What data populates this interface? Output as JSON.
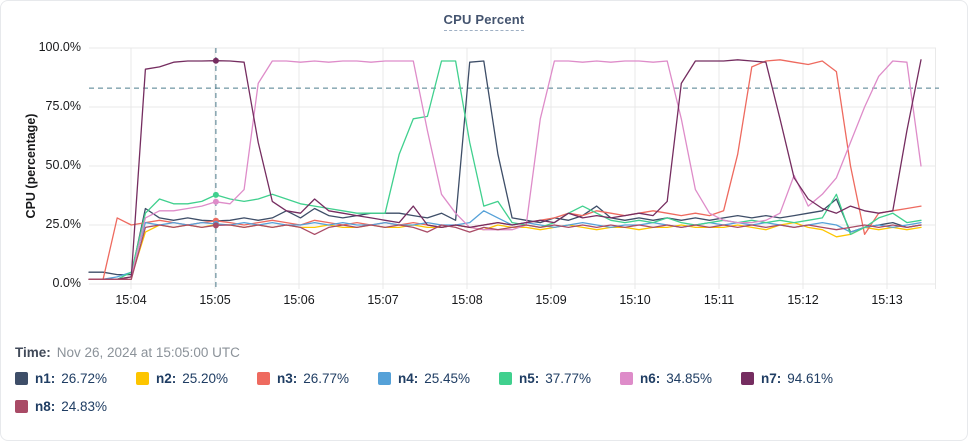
{
  "title": "CPU Percent",
  "time": {
    "label": "Time:",
    "value": "Nov 26, 2024 at 15:05:00 UTC"
  },
  "chart_data": {
    "type": "line",
    "title": "CPU Percent",
    "ylabel": "CPU (percentage)",
    "ylim": [
      0,
      100
    ],
    "grid": true,
    "legend_position": "bottom",
    "y_tick_labels": [
      "100.0%",
      "75.0%",
      "50.0%",
      "25.0%",
      "0.0%"
    ],
    "x_tick_labels": [
      "15:04",
      "15:05",
      "15:06",
      "15:07",
      "15:08",
      "15:09",
      "15:10",
      "15:11",
      "15:12",
      "15:13"
    ],
    "x_start_time": "15:03:30",
    "x_interval_seconds": 10,
    "threshold_percent": 83,
    "crosshair_time": "15:05:00",
    "crosshair_index": 9,
    "series": [
      {
        "name": "n1",
        "legend_label": "n1:",
        "legend_value": "26.72%",
        "color": "#3e4e68",
        "values": [
          5,
          5,
          4,
          4,
          32,
          28,
          27,
          28,
          27,
          26.72,
          27,
          28,
          27,
          28,
          31,
          28,
          32,
          29,
          28,
          29,
          30,
          30,
          30,
          29,
          28,
          30,
          27,
          94,
          94.5,
          55,
          28,
          27,
          26,
          28,
          27,
          29,
          33,
          28,
          27,
          28,
          27,
          28,
          27,
          28,
          27,
          28,
          29,
          28,
          29,
          28,
          29,
          30,
          31,
          36,
          22,
          24,
          25,
          26,
          24,
          25
        ]
      },
      {
        "name": "n2",
        "legend_label": "n2:",
        "legend_value": "25.20%",
        "color": "#fdc500",
        "values": [
          2,
          2,
          2,
          3,
          22,
          25,
          24,
          25,
          24,
          25.2,
          25,
          24,
          25,
          24,
          25,
          24,
          24,
          25,
          24,
          24,
          25,
          24,
          24,
          25,
          24,
          24,
          25,
          24,
          23,
          25,
          24,
          24,
          23,
          24,
          25,
          24,
          23,
          24,
          24,
          23,
          24,
          24,
          25,
          24,
          24,
          24,
          25,
          24,
          23,
          25,
          26,
          24,
          23,
          20,
          21,
          24,
          23,
          24,
          23,
          24
        ]
      },
      {
        "name": "n3",
        "legend_label": "n3:",
        "legend_value": "26.77%",
        "color": "#ee6a5f",
        "values": [
          2,
          2,
          28,
          25,
          26,
          27,
          26,
          25,
          26,
          26.77,
          26,
          25,
          26,
          27,
          26,
          25,
          27,
          26,
          25,
          26,
          25,
          26,
          25,
          26,
          25,
          24,
          25,
          24,
          25,
          26,
          25,
          26,
          27,
          28,
          30,
          29,
          31,
          30,
          29,
          30,
          31,
          30,
          29,
          30,
          29,
          31,
          55,
          92,
          94.5,
          95,
          94,
          93,
          94.5,
          90,
          50,
          21,
          30,
          31,
          32,
          33
        ]
      },
      {
        "name": "n4",
        "legend_label": "n4:",
        "legend_value": "25.45%",
        "color": "#55a1d8",
        "values": [
          2,
          2,
          3,
          5,
          26,
          25,
          26,
          25,
          26,
          25.45,
          25,
          26,
          25,
          26,
          25,
          25,
          26,
          25,
          26,
          25,
          25,
          26,
          25,
          25,
          26,
          25,
          25,
          26,
          31,
          28,
          25,
          26,
          25,
          24,
          25,
          26,
          25,
          24,
          25,
          25,
          26,
          25,
          24,
          25,
          26,
          25,
          26,
          25,
          26,
          25,
          24,
          25,
          26,
          25,
          22,
          24,
          25,
          24,
          25,
          26
        ]
      },
      {
        "name": "n5",
        "legend_label": "n5:",
        "legend_value": "37.77%",
        "color": "#40d08e",
        "values": [
          2,
          2,
          2,
          5,
          30,
          36,
          34,
          34,
          35,
          37.77,
          36,
          35,
          36,
          38,
          36,
          34,
          33,
          32,
          31,
          30,
          30,
          30,
          55,
          70,
          71,
          94.5,
          94.5,
          60,
          33,
          35,
          26,
          25,
          24,
          26,
          30,
          33,
          30,
          27,
          26,
          27,
          26,
          28,
          26,
          25,
          26,
          27,
          26,
          27,
          26,
          27,
          26,
          27,
          28,
          38,
          21,
          24,
          28,
          30,
          26,
          27
        ]
      },
      {
        "name": "n6",
        "legend_label": "n6:",
        "legend_value": "34.85%",
        "color": "#de8cc9",
        "values": [
          2,
          2,
          2,
          3,
          28,
          31,
          31,
          32,
          33,
          34.85,
          34,
          40,
          85,
          94.5,
          94.5,
          94,
          94.5,
          94,
          94.5,
          94.5,
          94,
          94.5,
          94.5,
          94.5,
          65,
          38,
          30,
          24,
          23,
          23,
          23,
          25,
          70,
          94.5,
          94.5,
          94,
          94.5,
          94,
          94.5,
          94.5,
          94,
          94.5,
          70,
          40,
          30,
          27,
          26,
          26,
          27,
          30,
          46,
          33,
          38,
          45,
          60,
          75,
          88,
          94.5,
          94,
          50
        ]
      },
      {
        "name": "n7",
        "legend_label": "n7:",
        "legend_value": "94.61%",
        "color": "#752d60",
        "values": [
          2,
          2,
          2,
          3,
          91,
          92,
          94,
          94.5,
          94.5,
          94.61,
          94.5,
          94,
          60,
          35,
          31,
          30,
          36,
          31,
          30,
          29,
          28,
          27,
          26,
          33,
          25,
          24,
          25,
          24,
          25,
          26,
          25,
          26,
          27,
          26,
          30,
          28,
          29,
          28,
          29,
          30,
          29,
          35,
          85,
          94.5,
          94.5,
          94.5,
          95,
          94.5,
          94,
          70,
          45,
          36,
          32,
          30,
          33,
          31,
          30,
          31,
          65,
          95
        ]
      },
      {
        "name": "n8",
        "legend_label": "n8:",
        "legend_value": "24.83%",
        "color": "#a94b66",
        "values": [
          2,
          2,
          2,
          2,
          24,
          25,
          24,
          25,
          24,
          24.83,
          25,
          24,
          25,
          24,
          25,
          24,
          21,
          24,
          25,
          24,
          25,
          24,
          25,
          24,
          22,
          25,
          24,
          22,
          24,
          23,
          24,
          25,
          24,
          25,
          24,
          25,
          24,
          25,
          24,
          25,
          24,
          25,
          24,
          25,
          24,
          25,
          24,
          25,
          24,
          25,
          24,
          25,
          24,
          23,
          24,
          25,
          24,
          25,
          24,
          25
        ]
      }
    ]
  }
}
